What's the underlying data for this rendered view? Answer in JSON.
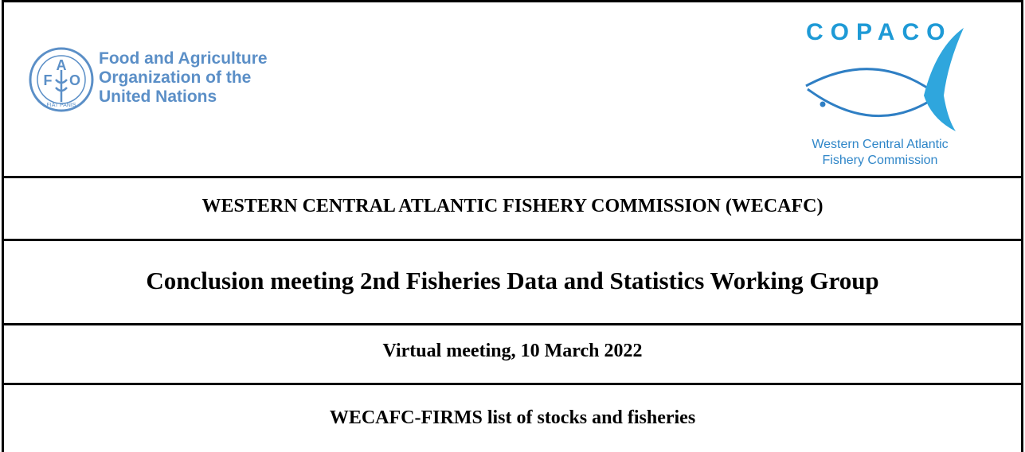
{
  "logos": {
    "fao": {
      "emblem": [
        "F",
        "A",
        "O"
      ],
      "motto": "FIAT PANIS",
      "lines": [
        "Food and Agriculture",
        "Organization of the",
        "United Nations"
      ]
    },
    "copaco": {
      "name": "COPACO",
      "lines": [
        "Western Central Atlantic",
        "Fishery Commission"
      ]
    }
  },
  "rows": [
    "WESTERN CENTRAL ATLANTIC FISHERY COMMISSION (WECAFC)",
    "Conclusion meeting 2nd Fisheries Data and Statistics Working Group",
    "Virtual meeting, 10 March 2022",
    "WECAFC-FIRMS list of stocks and fisheries"
  ]
}
